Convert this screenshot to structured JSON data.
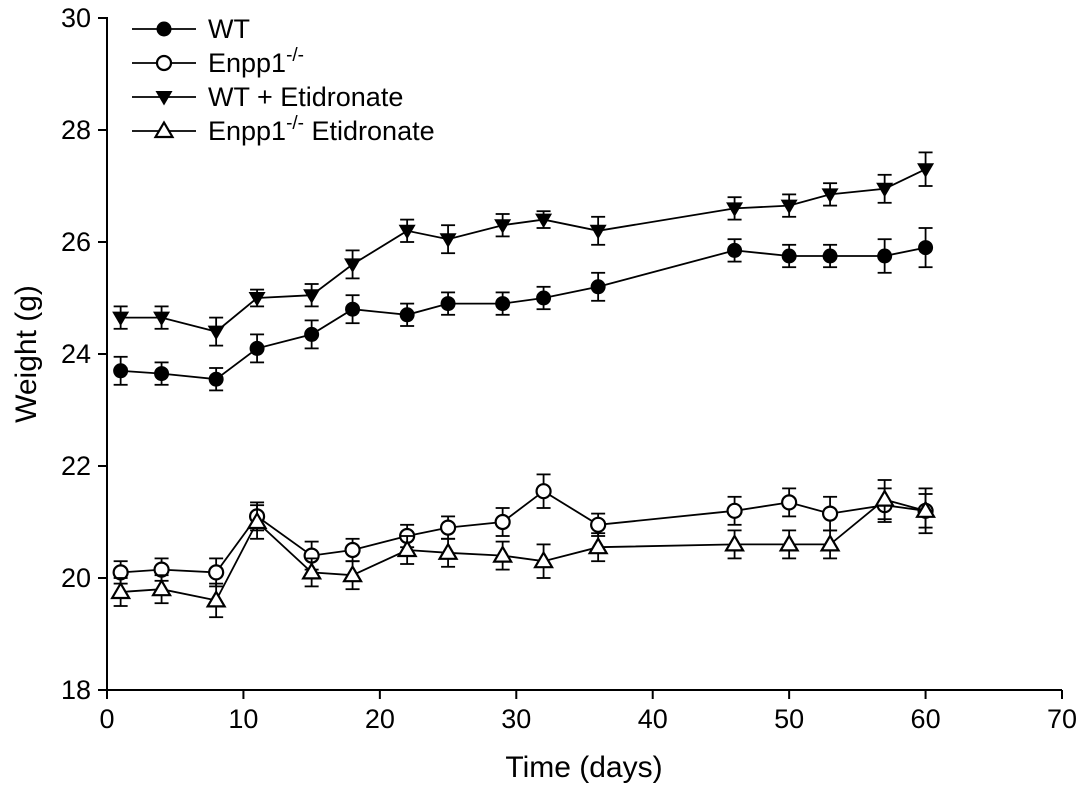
{
  "figure": {
    "background": "#ffffff",
    "line_color": "#000000"
  },
  "chart_data": {
    "type": "line",
    "title": "",
    "xlabel": "Time (days)",
    "ylabel": "Weight (g)",
    "xlim": [
      0,
      70
    ],
    "ylim": [
      18,
      30
    ],
    "xticks": [
      0,
      10,
      20,
      30,
      40,
      50,
      60,
      70
    ],
    "yticks": [
      18,
      20,
      22,
      24,
      26,
      28,
      30
    ],
    "grid": false,
    "legend_position": "top-left",
    "color": "#000000",
    "x": [
      1,
      4,
      8,
      11,
      15,
      18,
      22,
      25,
      29,
      32,
      36,
      46,
      50,
      53,
      57,
      60
    ],
    "series": [
      {
        "name": "WT",
        "marker": "filled-circle",
        "values": [
          23.7,
          23.65,
          23.55,
          24.1,
          24.35,
          24.8,
          24.7,
          24.9,
          24.9,
          25.0,
          25.2,
          25.85,
          25.75,
          25.75,
          25.75,
          25.9
        ],
        "errors": [
          0.25,
          0.2,
          0.2,
          0.25,
          0.25,
          0.25,
          0.2,
          0.2,
          0.2,
          0.2,
          0.25,
          0.2,
          0.2,
          0.2,
          0.3,
          0.35
        ]
      },
      {
        "name": "Enpp1-/-",
        "marker": "open-circle",
        "values": [
          20.1,
          20.15,
          20.1,
          21.1,
          20.4,
          20.5,
          20.75,
          20.9,
          21.0,
          21.55,
          20.95,
          21.2,
          21.35,
          21.15,
          21.3,
          21.2
        ],
        "errors": [
          0.2,
          0.2,
          0.25,
          0.25,
          0.25,
          0.2,
          0.2,
          0.2,
          0.25,
          0.3,
          0.2,
          0.25,
          0.25,
          0.3,
          0.3,
          0.3
        ]
      },
      {
        "name": "WT + Etidronate",
        "marker": "filled-triangle-down",
        "values": [
          24.65,
          24.65,
          24.4,
          25.0,
          25.05,
          25.6,
          26.2,
          26.05,
          26.3,
          26.4,
          26.2,
          26.6,
          26.65,
          26.85,
          26.95,
          27.3
        ],
        "errors": [
          0.2,
          0.2,
          0.25,
          0.15,
          0.2,
          0.25,
          0.2,
          0.25,
          0.2,
          0.15,
          0.25,
          0.2,
          0.2,
          0.2,
          0.25,
          0.3
        ]
      },
      {
        "name": "Enpp1-/- Etidronate",
        "marker": "open-triangle-up",
        "values": [
          19.75,
          19.8,
          19.6,
          21.0,
          20.1,
          20.05,
          20.5,
          20.45,
          20.4,
          20.3,
          20.55,
          20.6,
          20.6,
          20.6,
          21.4,
          21.2
        ],
        "errors": [
          0.25,
          0.25,
          0.3,
          0.3,
          0.25,
          0.25,
          0.25,
          0.25,
          0.25,
          0.3,
          0.25,
          0.25,
          0.25,
          0.25,
          0.35,
          0.4
        ]
      }
    ],
    "legend": [
      {
        "series_index": 0,
        "base": "WT",
        "sup": "",
        "rest": ""
      },
      {
        "series_index": 1,
        "base": "Enpp1",
        "sup": "-/-",
        "rest": ""
      },
      {
        "series_index": 2,
        "base": "WT + Etidronate",
        "sup": "",
        "rest": ""
      },
      {
        "series_index": 3,
        "base": "Enpp1",
        "sup": "-/-",
        "rest": "  Etidronate"
      }
    ]
  }
}
